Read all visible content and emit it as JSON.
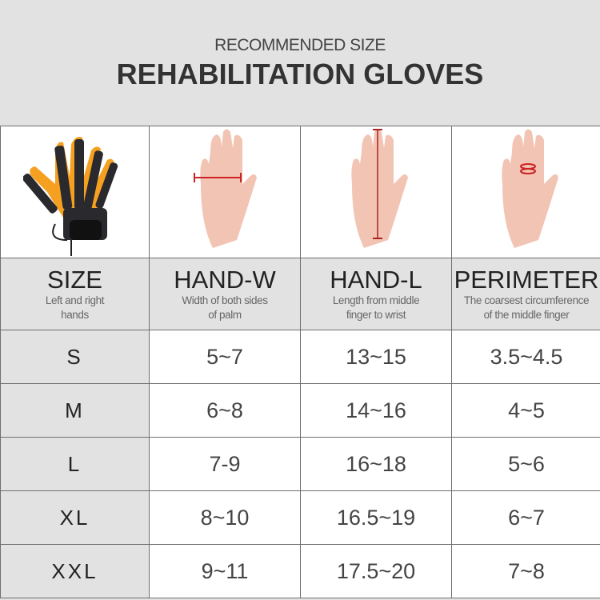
{
  "header": {
    "subtitle": "RECOMMENDED SIZE",
    "title": "REHABILITATION GLOVES"
  },
  "images": [
    {
      "icon": "rehabilitation-glove-image"
    },
    {
      "icon": "hand-width-measure-image"
    },
    {
      "icon": "hand-length-measure-image"
    },
    {
      "icon": "finger-perimeter-measure-image"
    }
  ],
  "columns": [
    {
      "title": "SIZE",
      "desc1": "Left and right",
      "desc2": "hands"
    },
    {
      "title": "HAND-W",
      "desc1": "Width of both sides",
      "desc2": "of palm"
    },
    {
      "title": "HAND-L",
      "desc1": "Length from middle",
      "desc2": "finger to wrist"
    },
    {
      "title": "PERIMETER",
      "desc1": "The coarsest circumference",
      "desc2": "of the middle finger"
    }
  ],
  "rows": [
    {
      "size": "S",
      "w": "5~7",
      "l": "13~15",
      "p": "3.5~4.5"
    },
    {
      "size": "M",
      "w": "6~8",
      "l": "14~16",
      "p": "4~5"
    },
    {
      "size": "L",
      "w": "7-9",
      "l": "16~18",
      "p": "5~6"
    },
    {
      "size": "XL",
      "w": "8~10",
      "l": "16.5~19",
      "p": "6~7"
    },
    {
      "size": "XXL",
      "w": "9~11",
      "l": "17.5~20",
      "p": "7~8"
    }
  ],
  "colors": {
    "measure_line": "#cc2222",
    "glove_orange": "#f5a020",
    "glove_black": "#2a2a2e"
  }
}
